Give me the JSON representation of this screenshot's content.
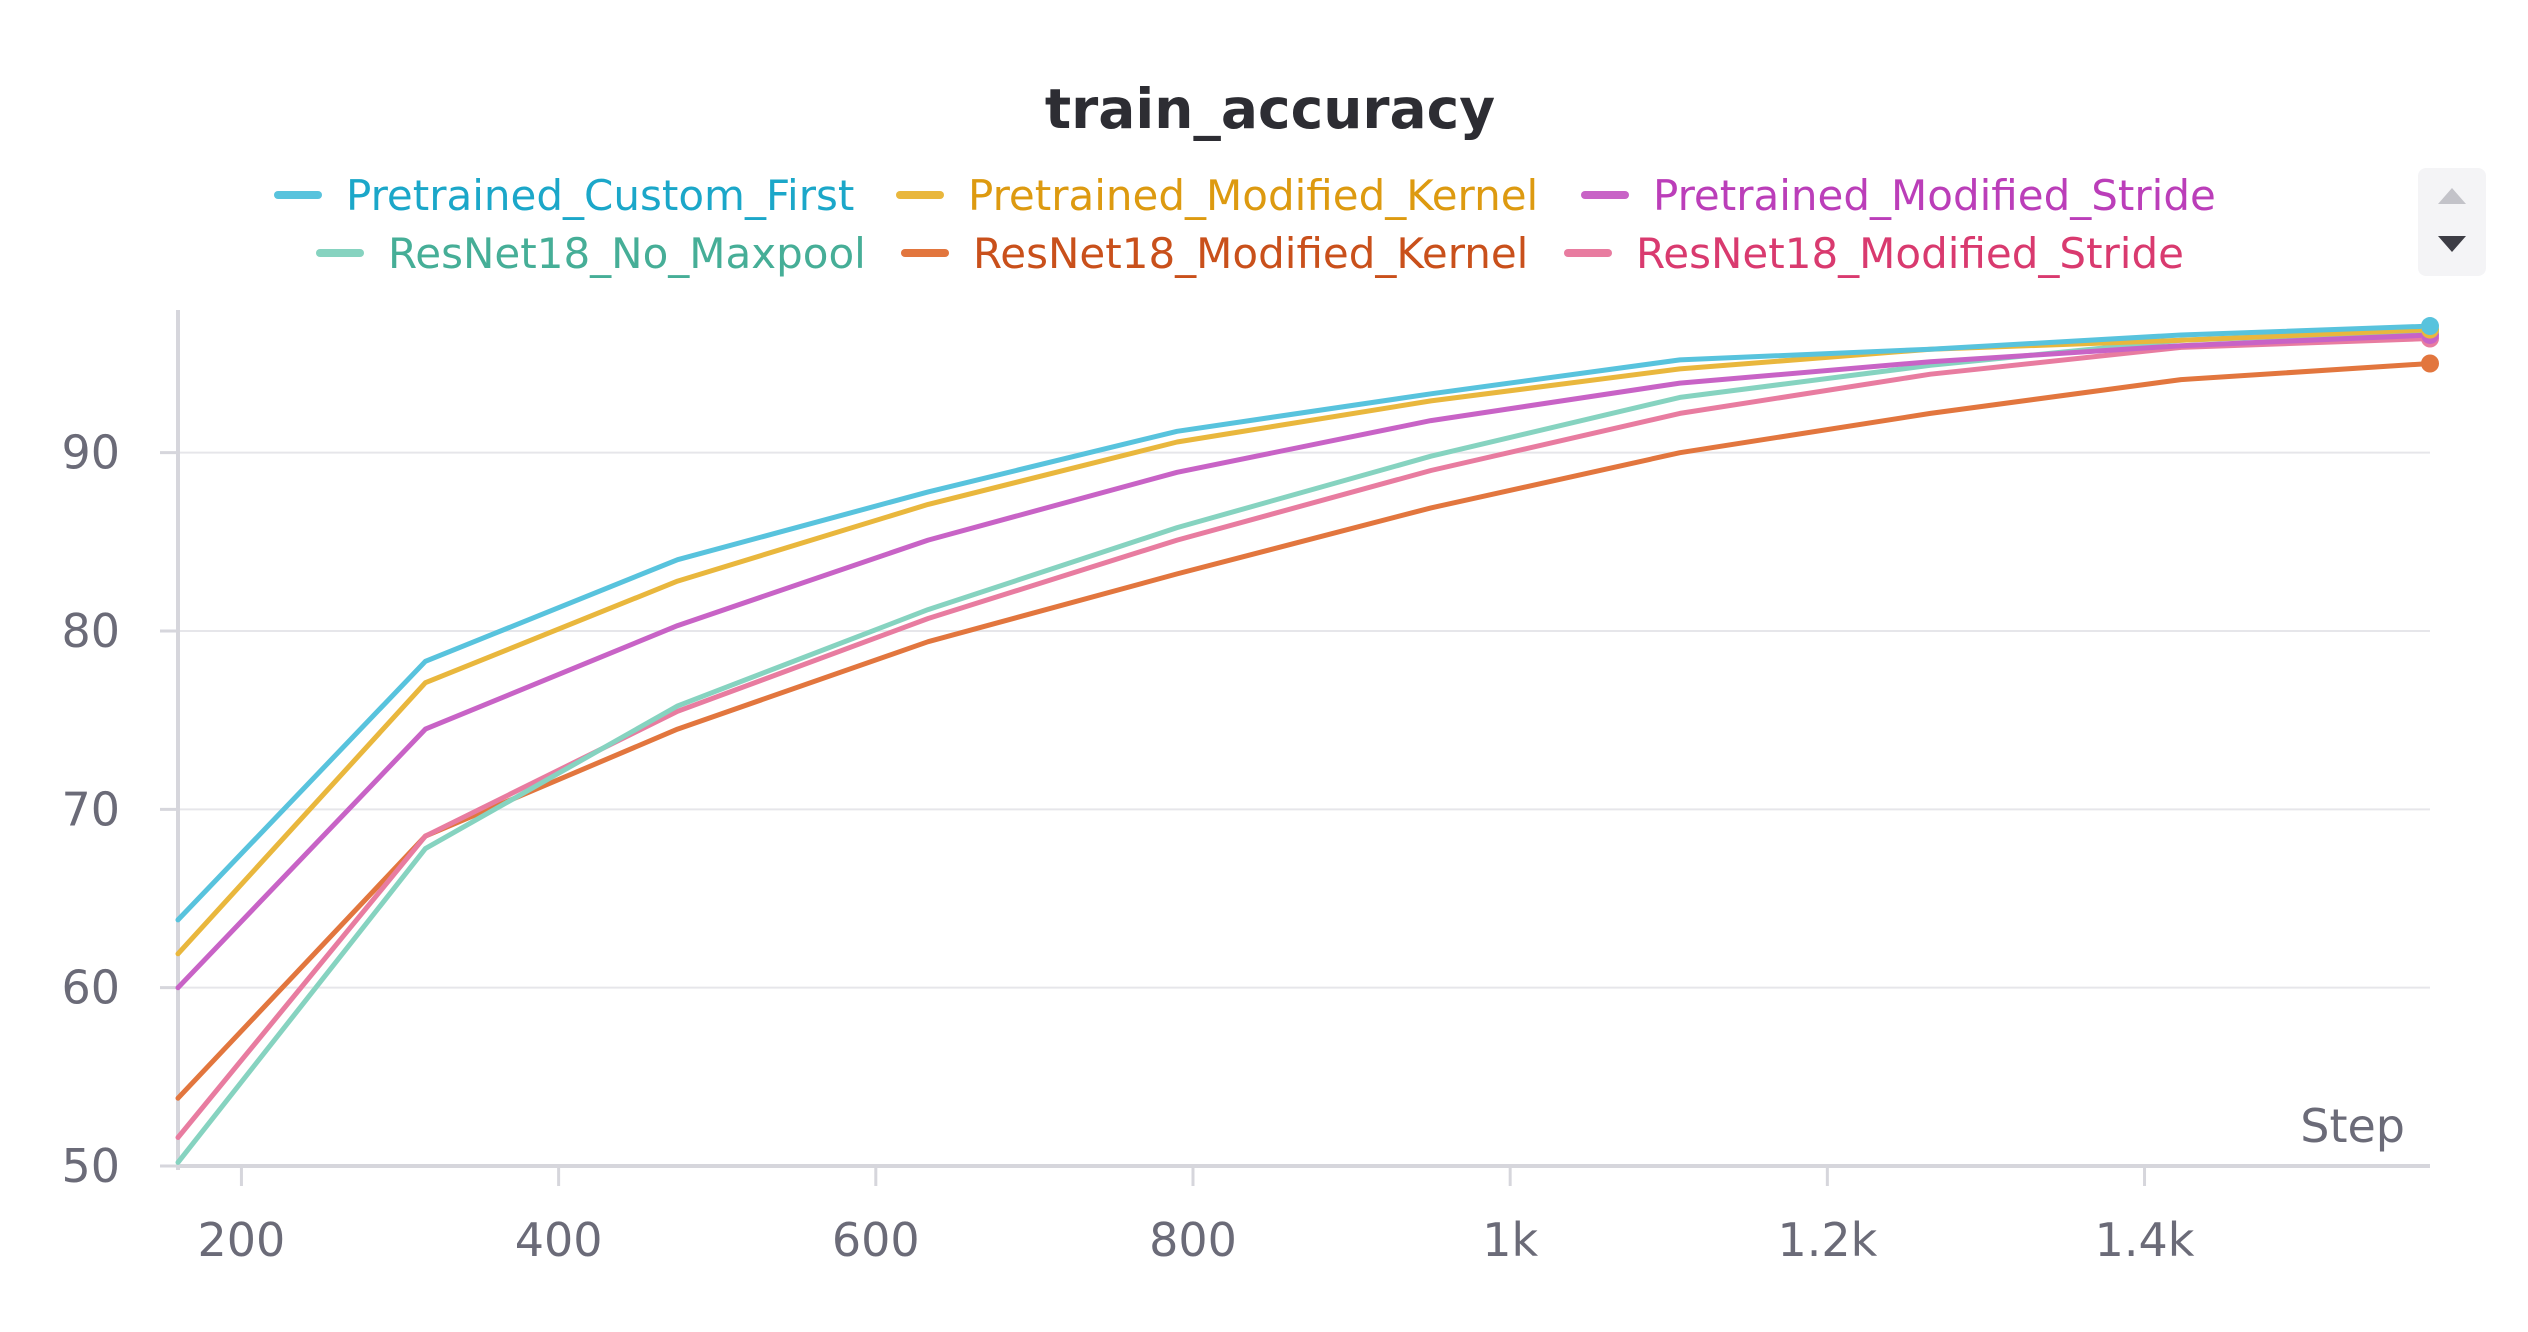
{
  "chart_data": {
    "type": "line",
    "title": "train_accuracy",
    "xlabel": "Step",
    "ylabel": "",
    "xlim": [
      160,
      1580
    ],
    "ylim": [
      50,
      98
    ],
    "x_ticks": [
      200,
      400,
      600,
      800,
      1000,
      1200,
      1400
    ],
    "x_tick_labels": [
      "200",
      "400",
      "600",
      "800",
      "1k",
      "1.2k",
      "1.4k"
    ],
    "y_ticks": [
      50,
      60,
      70,
      80,
      90
    ],
    "y_tick_labels": [
      "50",
      "60",
      "70",
      "80",
      "90"
    ],
    "grid": true,
    "legend_position": "top",
    "series": [
      {
        "name": "Pretrained_Custom_First",
        "color": "#58c3dd",
        "text_color": "#1ba7c9",
        "x": [
          160,
          316,
          475,
          633,
          790,
          950,
          1107,
          1265,
          1423,
          1582
        ],
        "y": [
          63.8,
          78.3,
          84.0,
          87.8,
          91.2,
          93.3,
          95.2,
          95.8,
          96.6,
          97.1
        ]
      },
      {
        "name": "Pretrained_Modified_Kernel",
        "color": "#e9b73d",
        "text_color": "#dd9a10",
        "x": [
          160,
          316,
          475,
          633,
          790,
          950,
          1107,
          1265,
          1423,
          1582
        ],
        "y": [
          61.9,
          77.1,
          82.8,
          87.1,
          90.6,
          92.9,
          94.7,
          95.8,
          96.3,
          96.9
        ]
      },
      {
        "name": "Pretrained_Modified_Stride",
        "color": "#c863c6",
        "text_color": "#bb3eb9",
        "x": [
          160,
          316,
          475,
          633,
          790,
          950,
          1107,
          1265,
          1423,
          1582
        ],
        "y": [
          60.0,
          74.5,
          80.3,
          85.1,
          88.9,
          91.8,
          93.9,
          95.1,
          96.0,
          96.6
        ]
      },
      {
        "name": "ResNet18_No_Maxpool",
        "color": "#86d3c0",
        "text_color": "#46ae97",
        "x": [
          160,
          316,
          475,
          633,
          790,
          950,
          1107,
          1265,
          1423,
          1582
        ],
        "y": [
          50.2,
          67.8,
          75.8,
          81.2,
          85.8,
          89.8,
          93.1,
          94.9,
          96.3,
          96.8
        ]
      },
      {
        "name": "ResNet18_Modified_Kernel",
        "color": "#e2763e",
        "text_color": "#c9501b",
        "x": [
          160,
          316,
          475,
          633,
          790,
          950,
          1107,
          1265,
          1423,
          1582
        ],
        "y": [
          53.8,
          68.5,
          74.5,
          79.4,
          83.2,
          86.9,
          90.0,
          92.2,
          94.1,
          95.0
        ]
      },
      {
        "name": "ResNet18_Modified_Stride",
        "color": "#e87ca0",
        "text_color": "#d93a6f",
        "x": [
          160,
          316,
          475,
          633,
          790,
          950,
          1107,
          1265,
          1423,
          1582
        ],
        "y": [
          51.6,
          68.5,
          75.5,
          80.7,
          85.1,
          89.0,
          92.2,
          94.4,
          95.9,
          96.4
        ]
      }
    ]
  }
}
